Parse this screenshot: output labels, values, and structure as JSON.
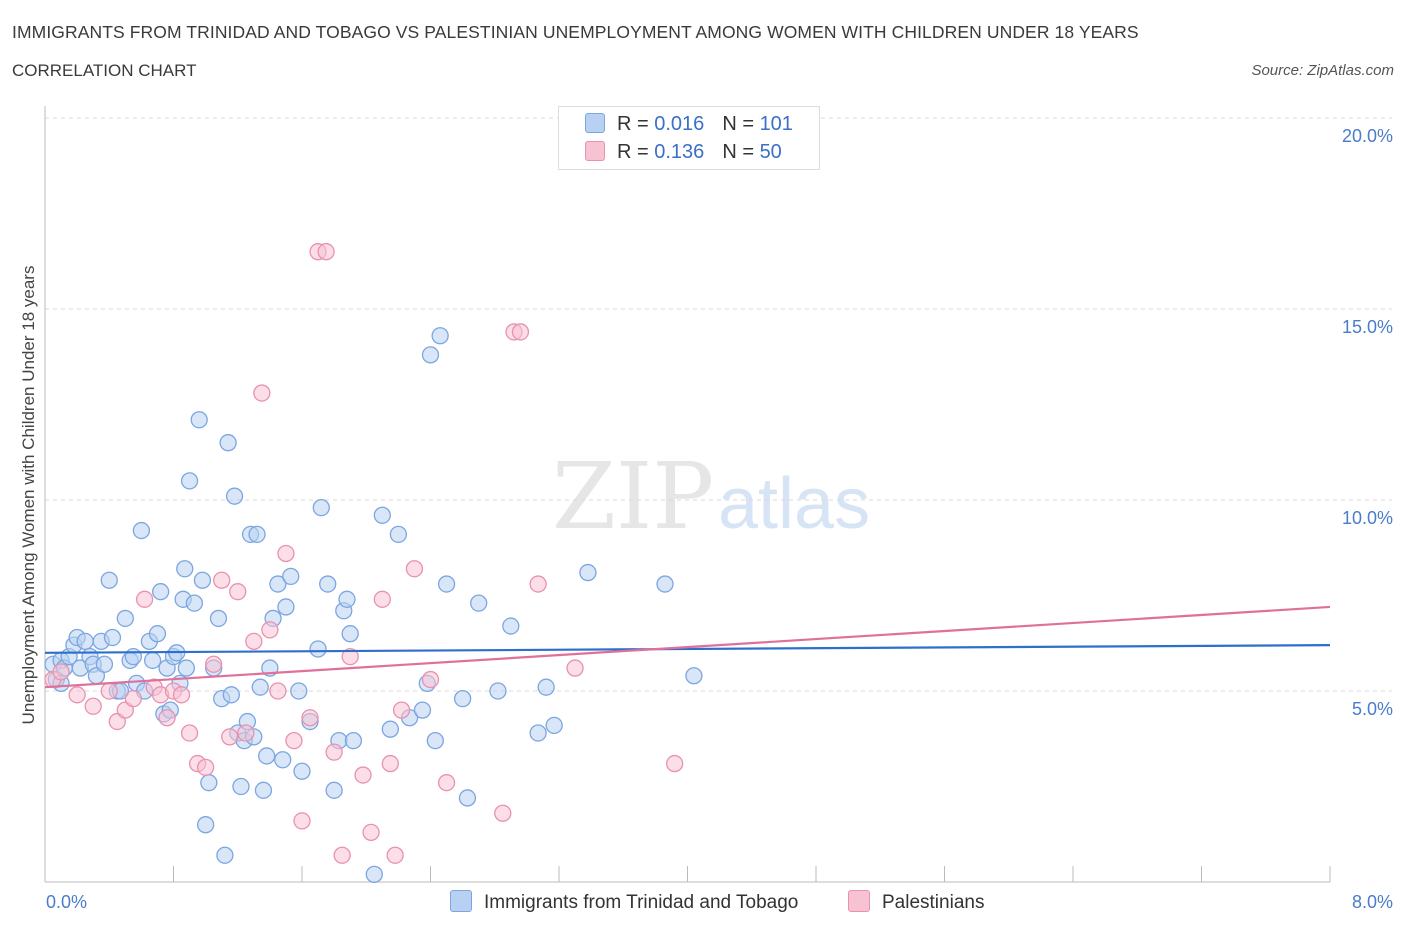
{
  "title": "IMMIGRANTS FROM TRINIDAD AND TOBAGO VS PALESTINIAN UNEMPLOYMENT AMONG WOMEN WITH CHILDREN UNDER 18 YEARS",
  "subtitle": "CORRELATION CHART",
  "source": "Source: ZipAtlas.com",
  "watermark": {
    "zip": "ZIP",
    "atlas": "atlas"
  },
  "legend": {
    "rows": [
      {
        "r_label": "R = ",
        "r_value": "0.016",
        "n_label": "N = ",
        "n_value": "101"
      },
      {
        "r_label": "R = ",
        "r_value": "0.136",
        "n_label": "N = ",
        "n_value": "50"
      }
    ]
  },
  "bottom_legend": {
    "series1": "Immigrants from Trinidad and Tobago",
    "series2": "Palestinians"
  },
  "colors": {
    "blue_fill": "#b8d1f3",
    "blue_stroke": "#7ba6e0",
    "blue_line": "#2e6fcc",
    "pink_fill": "#f7c3d3",
    "pink_stroke": "#e991ae",
    "pink_line": "#e0709a",
    "grid": "#d8d8d8",
    "tick_label": "#4a7cc9"
  },
  "chart_data": {
    "type": "scatter",
    "title": "IMMIGRANTS FROM TRINIDAD AND TOBAGO VS PALESTINIAN UNEMPLOYMENT AMONG WOMEN WITH CHILDREN UNDER 18 YEARS",
    "xlabel": "",
    "ylabel": "Unemployment Among Women with Children Under 18 years",
    "xlim": [
      0,
      8
    ],
    "ylim": [
      0,
      20
    ],
    "x_tick_labels": [
      "0.0%",
      "8.0%"
    ],
    "y_ticks": [
      5,
      10,
      15,
      20
    ],
    "y_tick_labels": [
      "5.0%",
      "10.0%",
      "15.0%",
      "20.0%"
    ],
    "grid": true,
    "legend_placement": "top-center",
    "series": [
      {
        "name": "Immigrants from Trinidad and Tobago",
        "trend": [
          [
            0,
            6.0
          ],
          [
            8,
            6.2
          ]
        ],
        "points": [
          [
            0.05,
            5.7
          ],
          [
            0.07,
            5.3
          ],
          [
            0.1,
            5.8
          ],
          [
            0.12,
            5.6
          ],
          [
            0.15,
            5.9
          ],
          [
            0.18,
            6.2
          ],
          [
            0.2,
            6.4
          ],
          [
            0.22,
            5.6
          ],
          [
            0.25,
            6.3
          ],
          [
            0.28,
            5.9
          ],
          [
            0.3,
            5.7
          ],
          [
            0.32,
            5.4
          ],
          [
            0.35,
            6.3
          ],
          [
            0.37,
            5.7
          ],
          [
            0.4,
            7.9
          ],
          [
            0.42,
            6.4
          ],
          [
            0.45,
            5.0
          ],
          [
            0.47,
            5.0
          ],
          [
            0.5,
            6.9
          ],
          [
            0.53,
            5.8
          ],
          [
            0.55,
            5.9
          ],
          [
            0.57,
            5.2
          ],
          [
            0.6,
            9.2
          ],
          [
            0.62,
            5.0
          ],
          [
            0.65,
            6.3
          ],
          [
            0.67,
            5.8
          ],
          [
            0.7,
            6.5
          ],
          [
            0.72,
            7.6
          ],
          [
            0.74,
            4.4
          ],
          [
            0.76,
            5.6
          ],
          [
            0.78,
            4.5
          ],
          [
            0.8,
            5.9
          ],
          [
            0.82,
            6.0
          ],
          [
            0.84,
            5.2
          ],
          [
            0.86,
            7.4
          ],
          [
            0.87,
            8.2
          ],
          [
            0.88,
            5.6
          ],
          [
            0.9,
            10.5
          ],
          [
            0.93,
            7.3
          ],
          [
            0.96,
            12.1
          ],
          [
            0.98,
            7.9
          ],
          [
            1.0,
            1.5
          ],
          [
            1.02,
            2.6
          ],
          [
            1.05,
            5.6
          ],
          [
            1.08,
            6.9
          ],
          [
            1.1,
            4.8
          ],
          [
            1.12,
            0.7
          ],
          [
            1.14,
            11.5
          ],
          [
            1.16,
            4.9
          ],
          [
            1.18,
            10.1
          ],
          [
            1.2,
            3.9
          ],
          [
            1.22,
            2.5
          ],
          [
            1.24,
            3.7
          ],
          [
            1.26,
            4.2
          ],
          [
            1.28,
            9.1
          ],
          [
            1.3,
            3.8
          ],
          [
            1.32,
            9.1
          ],
          [
            1.34,
            5.1
          ],
          [
            1.36,
            2.4
          ],
          [
            1.38,
            3.3
          ],
          [
            1.4,
            5.6
          ],
          [
            1.42,
            6.9
          ],
          [
            1.45,
            7.8
          ],
          [
            1.48,
            3.2
          ],
          [
            1.5,
            7.2
          ],
          [
            1.53,
            8.0
          ],
          [
            1.58,
            5.0
          ],
          [
            1.6,
            2.9
          ],
          [
            1.65,
            4.2
          ],
          [
            1.7,
            6.1
          ],
          [
            1.72,
            9.8
          ],
          [
            1.76,
            7.8
          ],
          [
            1.8,
            2.4
          ],
          [
            1.83,
            3.7
          ],
          [
            1.86,
            7.1
          ],
          [
            1.88,
            7.4
          ],
          [
            1.9,
            6.5
          ],
          [
            1.92,
            3.7
          ],
          [
            2.05,
            0.2
          ],
          [
            2.1,
            9.6
          ],
          [
            2.15,
            4.0
          ],
          [
            2.2,
            9.1
          ],
          [
            2.27,
            4.3
          ],
          [
            2.35,
            4.5
          ],
          [
            2.38,
            5.2
          ],
          [
            2.4,
            13.8
          ],
          [
            2.43,
            3.7
          ],
          [
            2.46,
            14.3
          ],
          [
            2.5,
            7.8
          ],
          [
            2.6,
            4.8
          ],
          [
            2.63,
            2.2
          ],
          [
            2.7,
            7.3
          ],
          [
            2.82,
            5.0
          ],
          [
            2.9,
            6.7
          ],
          [
            3.07,
            3.9
          ],
          [
            3.12,
            5.1
          ],
          [
            3.17,
            4.1
          ],
          [
            3.38,
            8.1
          ],
          [
            3.86,
            7.8
          ],
          [
            4.04,
            5.4
          ],
          [
            0.1,
            5.2
          ]
        ]
      },
      {
        "name": "Palestinians",
        "trend": [
          [
            0,
            5.1
          ],
          [
            8,
            7.2
          ]
        ],
        "points": [
          [
            0.05,
            5.3
          ],
          [
            0.1,
            5.5
          ],
          [
            0.2,
            4.9
          ],
          [
            0.3,
            4.6
          ],
          [
            0.4,
            5.0
          ],
          [
            0.45,
            4.2
          ],
          [
            0.5,
            4.5
          ],
          [
            0.55,
            4.8
          ],
          [
            0.62,
            7.4
          ],
          [
            0.68,
            5.1
          ],
          [
            0.72,
            4.9
          ],
          [
            0.76,
            4.3
          ],
          [
            0.8,
            5.0
          ],
          [
            0.85,
            4.9
          ],
          [
            0.9,
            3.9
          ],
          [
            0.95,
            3.1
          ],
          [
            1.0,
            3.0
          ],
          [
            1.05,
            5.7
          ],
          [
            1.1,
            7.9
          ],
          [
            1.15,
            3.8
          ],
          [
            1.2,
            7.6
          ],
          [
            1.25,
            3.9
          ],
          [
            1.3,
            6.3
          ],
          [
            1.35,
            12.8
          ],
          [
            1.4,
            6.6
          ],
          [
            1.45,
            5.0
          ],
          [
            1.5,
            8.6
          ],
          [
            1.55,
            3.7
          ],
          [
            1.6,
            1.6
          ],
          [
            1.65,
            4.3
          ],
          [
            1.7,
            16.5
          ],
          [
            1.75,
            16.5
          ],
          [
            1.8,
            3.4
          ],
          [
            1.85,
            0.7
          ],
          [
            1.9,
            5.9
          ],
          [
            1.98,
            2.8
          ],
          [
            2.03,
            1.3
          ],
          [
            2.1,
            7.4
          ],
          [
            2.15,
            3.1
          ],
          [
            2.18,
            0.7
          ],
          [
            2.22,
            4.5
          ],
          [
            2.3,
            8.2
          ],
          [
            2.4,
            5.3
          ],
          [
            2.5,
            2.6
          ],
          [
            2.85,
            1.8
          ],
          [
            2.92,
            14.4
          ],
          [
            2.96,
            14.4
          ],
          [
            3.07,
            7.8
          ],
          [
            3.3,
            5.6
          ],
          [
            3.92,
            3.1
          ]
        ]
      }
    ]
  }
}
